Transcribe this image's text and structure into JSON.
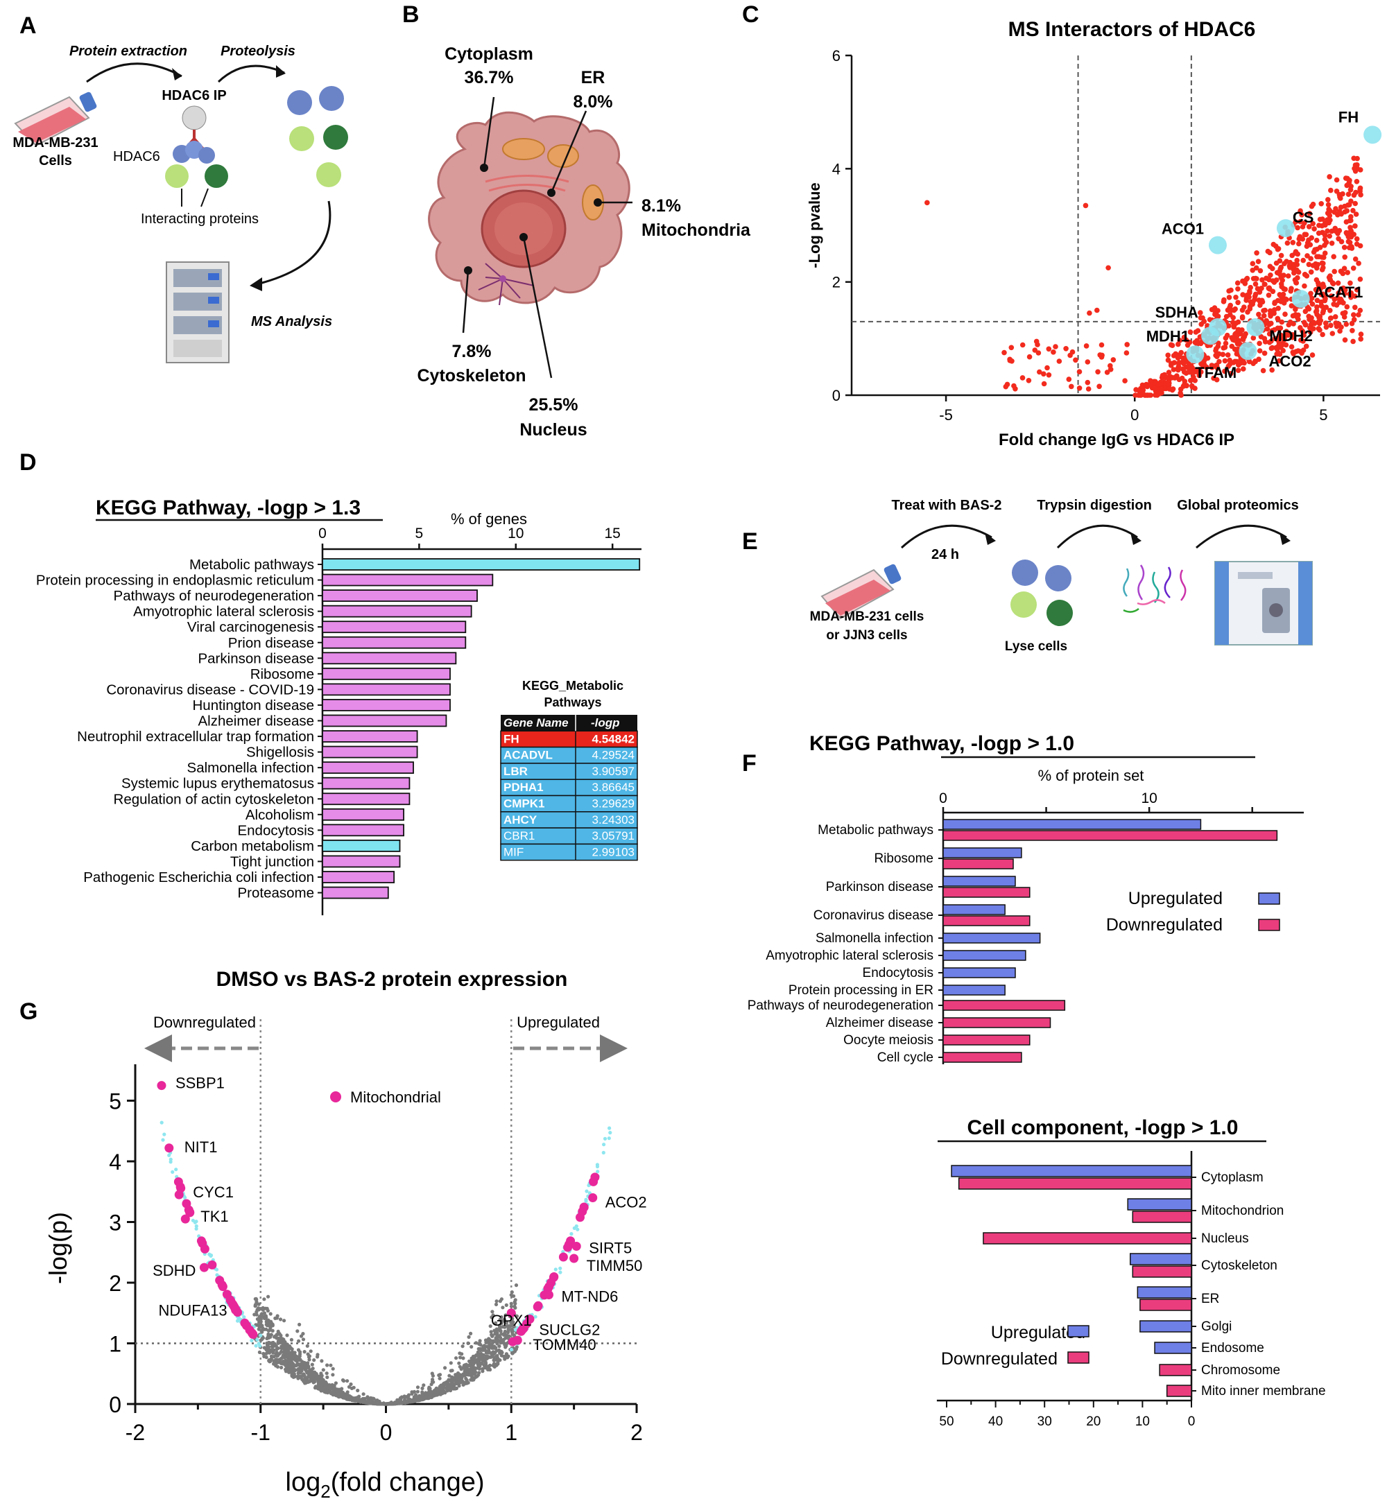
{
  "panels": {
    "A": {
      "letter": "A",
      "cell_label_1": "MDA-MB-231",
      "cell_label_2": "Cells",
      "step_extraction": "Protein extraction",
      "step_proteolysis": "Proteolysis",
      "ip_label": "HDAC6 IP",
      "hdac6_label": "HDAC6",
      "interacting_label": "Interacting proteins",
      "ms_label": "MS Analysis"
    },
    "B": {
      "letter": "B",
      "compartments": [
        {
          "name": "Cytoplasm",
          "pct": "36.7%"
        },
        {
          "name": "ER",
          "pct": "8.0%"
        },
        {
          "name": "Mitochondria",
          "pct": "8.1%"
        },
        {
          "name": "Cytoskeleton",
          "pct": "7.8%"
        },
        {
          "name": "Nucleus",
          "pct": "25.5%"
        }
      ]
    },
    "D": {
      "letter": "D",
      "inset_title_1": "KEGG_Metabolic",
      "inset_title_2": "Pathways",
      "inset_header": [
        "Gene Name",
        "-logp"
      ],
      "inset_rows": [
        {
          "gene": "FH",
          "logp": "4.54842"
        },
        {
          "gene": "ACADVL",
          "logp": "4.29524"
        },
        {
          "gene": "LBR",
          "logp": "3.90597"
        },
        {
          "gene": "PDHA1",
          "logp": "3.86645"
        },
        {
          "gene": "CMPK1",
          "logp": "3.29629"
        },
        {
          "gene": "AHCY",
          "logp": "3.24303"
        },
        {
          "gene": "CBR1",
          "logp": "3.05791"
        },
        {
          "gene": "MIF",
          "logp": "2.99103"
        }
      ]
    },
    "E": {
      "letter": "E",
      "step1": "Treat with BAS-2",
      "step1_time": "24 h",
      "step2": "Trypsin digestion",
      "step3": "Global proteomics",
      "cells_1": "MDA-MB-231 cells",
      "cells_2": "or JJN3 cells",
      "lyse": "Lyse cells"
    },
    "C": {
      "letter": "C"
    },
    "F": {
      "letter": "F"
    },
    "G": {
      "letter": "G"
    }
  },
  "colors": {
    "pink": "#e8279a",
    "magenta": "#e0509b",
    "violet": "#e58be8",
    "cyan": "#7fe3f0",
    "blue": "#6e7fe6",
    "rose": "#ea3d7e",
    "red": "#f22b1e",
    "grey": "#7a7a7a",
    "lightcyan": "#8fe3f0"
  },
  "chart_data": [
    {
      "id": "C",
      "type": "scatter",
      "title": "MS Interactors of HDAC6",
      "xlabel": "Fold change IgG vs HDAC6 IP",
      "ylabel": "-Log pvalue",
      "xlim": [
        -7.5,
        6.5
      ],
      "ylim": [
        0,
        6
      ],
      "xticks": [
        "-5",
        "0",
        "5"
      ],
      "yticks": [
        "0",
        "2",
        "4",
        "6"
      ],
      "thresholds": {
        "x": [
          -1.5,
          1.5
        ],
        "y": 1.3
      },
      "highlighted": [
        {
          "label": "FH",
          "x": 6.3,
          "y": 4.6
        },
        {
          "label": "CS",
          "x": 4.0,
          "y": 2.95
        },
        {
          "label": "ACO1",
          "x": 2.2,
          "y": 2.65
        },
        {
          "label": "ACAT1",
          "x": 4.4,
          "y": 1.7
        },
        {
          "label": "SDHA",
          "x": 2.2,
          "y": 1.2
        },
        {
          "label": "MDH1",
          "x": 2.0,
          "y": 1.05
        },
        {
          "label": "MDH2",
          "x": 3.2,
          "y": 1.2
        },
        {
          "label": "ACO2",
          "x": 3.0,
          "y": 0.78
        },
        {
          "label": "TFAM",
          "x": 1.6,
          "y": 0.72
        }
      ],
      "cloud_note": "approx. 900 interactor proteins, mostly 0 < x < 6, y increasing with x"
    },
    {
      "id": "D",
      "type": "bar",
      "orientation": "horizontal",
      "title": "KEGG Pathway, -logp > 1.3",
      "xlabel": "% of genes",
      "xlim": [
        0,
        16.5
      ],
      "xticks": [
        "0",
        "5",
        "10",
        "15"
      ],
      "categories": [
        "Metabolic pathways",
        "Protein processing in endoplasmic reticulum",
        "Pathways of neurodegeneration",
        "Amyotrophic lateral sclerosis",
        "Viral carcinogenesis",
        "Prion disease",
        "Parkinson disease",
        "Ribosome",
        "Coronavirus disease - COVID-19",
        "Huntington disease",
        "Alzheimer disease",
        "Neutrophil extracellular trap formation",
        "Shigellosis",
        "Salmonella infection",
        "Systemic lupus erythematosus",
        "Regulation of actin cytoskeleton",
        "Alcoholism",
        "Endocytosis",
        "Carbon metabolism",
        "Tight junction",
        "Pathogenic Escherichia coli infection",
        "Proteasome"
      ],
      "values": [
        16.4,
        8.8,
        8.0,
        7.7,
        7.4,
        7.4,
        6.9,
        6.6,
        6.6,
        6.6,
        6.4,
        4.9,
        4.9,
        4.7,
        4.5,
        4.5,
        4.2,
        4.2,
        4.0,
        4.0,
        3.7,
        3.4
      ],
      "highlight_categories": [
        "Metabolic pathways",
        "Carbon metabolism"
      ]
    },
    {
      "id": "F1",
      "type": "bar",
      "orientation": "horizontal",
      "title": "KEGG Pathway, -logp > 1.0",
      "xlabel": "% of protein set",
      "xlim": [
        0,
        17.5
      ],
      "xticks": [
        "0",
        "10"
      ],
      "legend": [
        "Upregulated",
        "Downregulated"
      ],
      "categories": [
        "Metabolic pathways",
        "Ribosome",
        "Parkinson disease",
        "Coronavirus disease",
        "Salmonella infection",
        "Amyotrophic lateral sclerosis",
        "Endocytosis",
        "Protein processing in ER",
        "Pathways of neurodegeneration",
        "Alzheimer disease",
        "Oocyte meiosis",
        "Cell cycle"
      ],
      "series": [
        {
          "name": "Upregulated",
          "values": [
            12.5,
            3.8,
            3.5,
            3.0,
            4.7,
            4.0,
            3.5,
            3.0,
            null,
            null,
            null,
            null
          ]
        },
        {
          "name": "Downregulated",
          "values": [
            16.2,
            3.4,
            4.2,
            4.2,
            null,
            null,
            null,
            null,
            5.9,
            5.2,
            4.2,
            3.8
          ]
        }
      ]
    },
    {
      "id": "F2",
      "type": "bar",
      "orientation": "horizontal",
      "title": "Cell component, -logp > 1.0",
      "xlim": [
        50,
        0
      ],
      "xticks": [
        "50",
        "40",
        "30",
        "20",
        "10",
        "0"
      ],
      "legend": [
        "Upregulated",
        "Downregulated"
      ],
      "categories": [
        "Cytoplasm",
        "Mitochondrion",
        "Nucleus",
        "Cytoskeleton",
        "ER",
        "Golgi",
        "Endosome",
        "Chromosome",
        "Mito inner membrane"
      ],
      "series": [
        {
          "name": "Upregulated",
          "values": [
            49,
            13,
            null,
            12.5,
            11,
            10.5,
            7.5,
            null,
            null
          ]
        },
        {
          "name": "Downregulated",
          "values": [
            47.5,
            12,
            42.5,
            12,
            10.5,
            null,
            null,
            6.5,
            5
          ]
        }
      ]
    },
    {
      "id": "G",
      "type": "scatter",
      "title": "DMSO vs BAS-2 protein expression",
      "xlabel_main": "log",
      "xlabel_sub": "2",
      "xlabel_rest": "(fold change)",
      "ylabel": "-log(p)",
      "xlim": [
        -2,
        2
      ],
      "ylim": [
        0,
        5.6
      ],
      "xticks": [
        "-2",
        "-1",
        "0",
        "1",
        "2"
      ],
      "yticks": [
        "0",
        "1",
        "2",
        "3",
        "4",
        "5"
      ],
      "thresholds": {
        "x": [
          -1,
          1
        ],
        "y": 1
      },
      "arrow_left": "Downregulated",
      "arrow_right": "Upregulated",
      "legend": "Mitochondrial",
      "labels": [
        {
          "label": "SSBP1",
          "x": -1.79,
          "y": 5.25
        },
        {
          "label": "NIT1",
          "x": -1.73,
          "y": 4.22
        },
        {
          "label": "CYC1",
          "x": -1.65,
          "y": 3.45
        },
        {
          "label": "TK1",
          "x": -1.6,
          "y": 3.05
        },
        {
          "label": "SDHD",
          "x": -1.45,
          "y": 2.25
        },
        {
          "label": "NDUFA13",
          "x": -1.2,
          "y": 1.55
        },
        {
          "label": "ACO2",
          "x": 1.65,
          "y": 3.4
        },
        {
          "label": "SIRT5",
          "x": 1.52,
          "y": 2.6
        },
        {
          "label": "TIMM50",
          "x": 1.5,
          "y": 2.4
        },
        {
          "label": "MT-ND6",
          "x": 1.3,
          "y": 1.8
        },
        {
          "label": "GPX1",
          "x": 1.0,
          "y": 1.5
        },
        {
          "label": "SUCLG2",
          "x": 1.1,
          "y": 1.25
        },
        {
          "label": "TOMM40",
          "x": 1.05,
          "y": 1.05
        }
      ]
    }
  ]
}
